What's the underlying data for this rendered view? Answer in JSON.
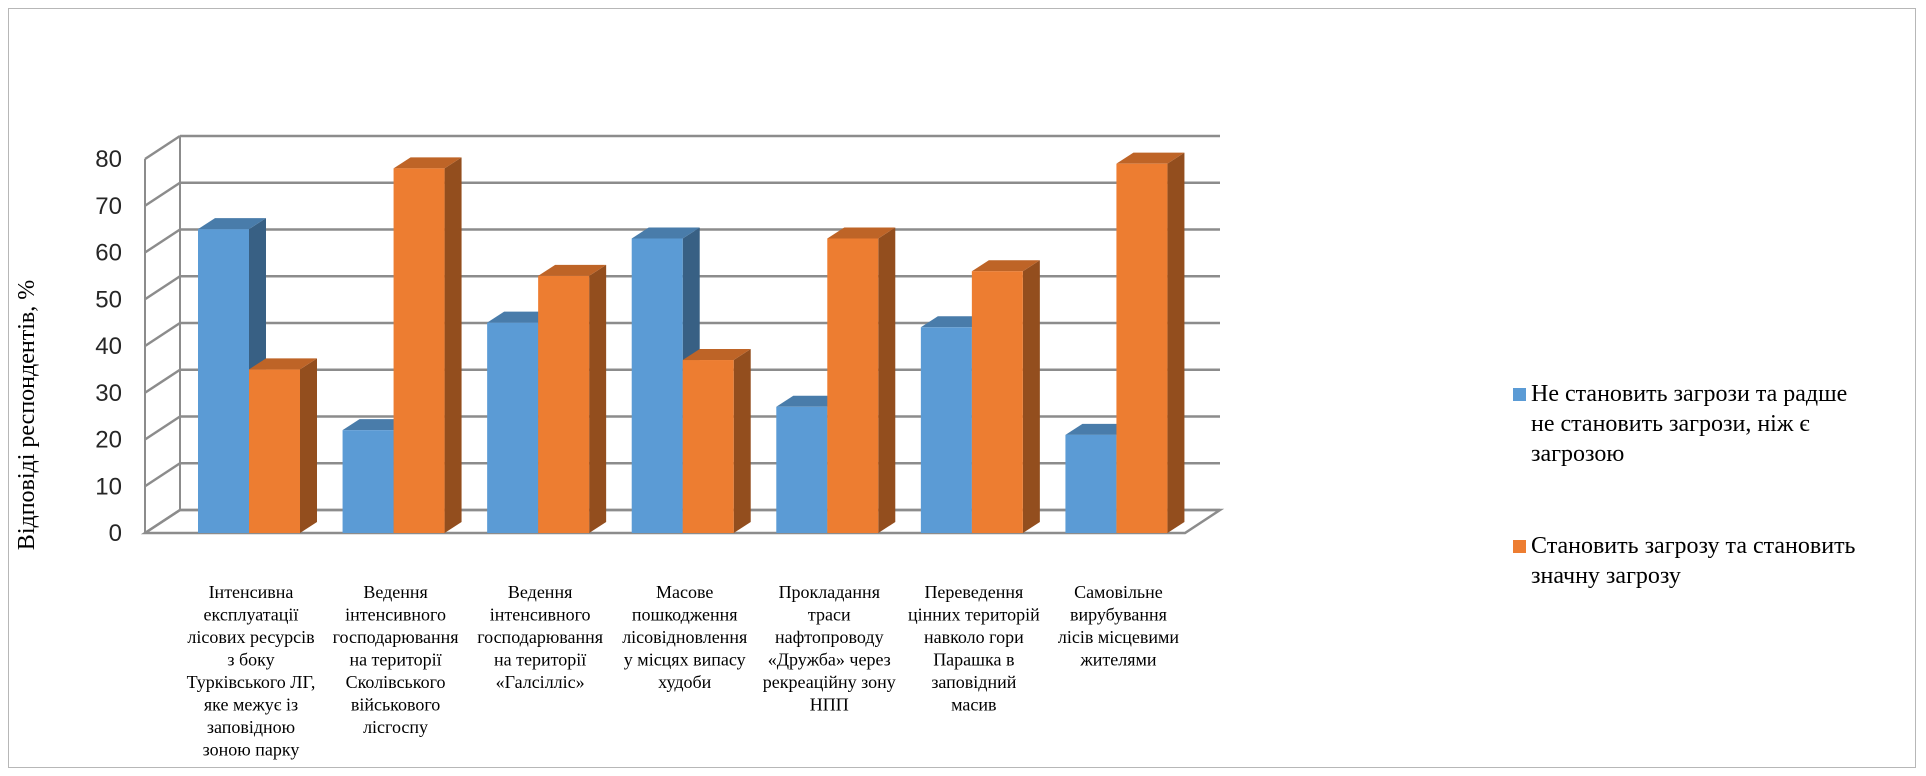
{
  "chart_data": {
    "type": "bar",
    "title": "",
    "xlabel": "",
    "ylabel": "Відповіді респондентів, %",
    "ylim": [
      0,
      80
    ],
    "yticks": [
      0,
      10,
      20,
      30,
      40,
      50,
      60,
      70,
      80
    ],
    "grid": true,
    "legend_position": "right",
    "categories": [
      [
        "Інтенсивна",
        "експлуатації",
        "лісових ресурсів",
        "з боку",
        "Турківського ЛГ,",
        "яке межує із",
        "заповідною",
        "зоною парку"
      ],
      [
        "Ведення",
        "інтенсивного",
        "господарювання",
        "на території",
        "Сколівського",
        "військового",
        "лісгоспу"
      ],
      [
        "Ведення",
        "інтенсивного",
        "господарювання",
        "на території",
        "«Галсілліс»"
      ],
      [
        "Масове",
        "пошкодження",
        "лісовідновлення",
        "у місцях випасу",
        "худоби"
      ],
      [
        "Прокладання",
        "траси",
        "нафтопроводу",
        "«Дружба» через",
        "рекреаційну  зону",
        "НПП"
      ],
      [
        "Переведення",
        "цінних  територій",
        "навколо гори",
        "Парашка в",
        "заповідний",
        "масив"
      ],
      [
        "Самовільне",
        "вирубування",
        "лісів місцевими",
        "жителями"
      ]
    ],
    "series": [
      {
        "name": [
          "Не становить загрози та радше",
          "не становить загрози, ніж є",
          "загрозою"
        ],
        "color": "#5B9BD5",
        "values": [
          65,
          22,
          45,
          63,
          27,
          44,
          21
        ]
      },
      {
        "name": [
          "Становить загрозу та становить",
          "значну загрозу"
        ],
        "color": "#ED7D31",
        "values": [
          35,
          78,
          55,
          37,
          63,
          56,
          79
        ]
      }
    ]
  }
}
